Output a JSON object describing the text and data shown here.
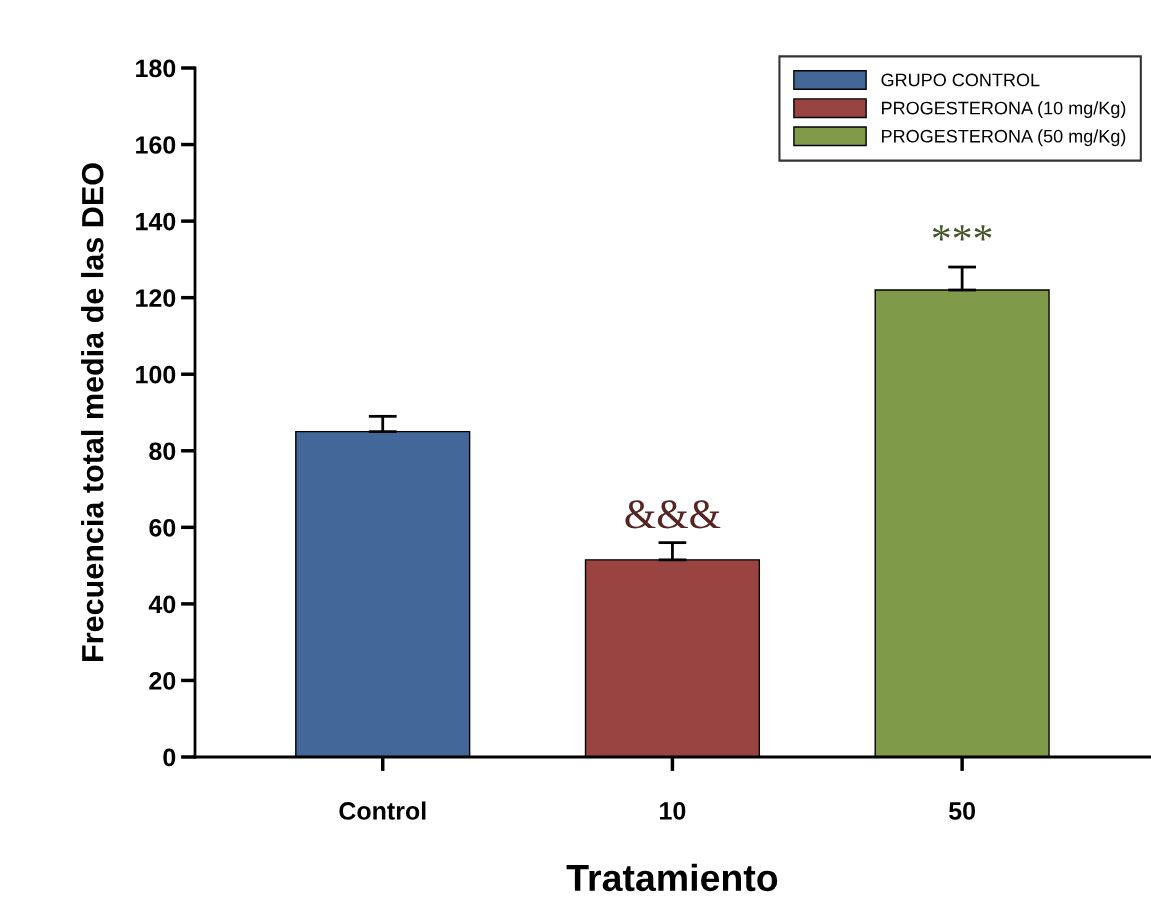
{
  "chart_data": {
    "type": "bar",
    "xlabel": "Tratamiento",
    "ylabel": "Frecuencia total media de las DEO",
    "categories": [
      "Control",
      "10",
      "50"
    ],
    "series": [
      {
        "name": "GRUPO CONTROL",
        "color": "#44679a",
        "values": [
          85,
          null,
          null
        ],
        "errors": [
          4,
          null,
          null
        ]
      },
      {
        "name": "PROGESTERONA (10 mg/Kg)",
        "color": "#9a4441",
        "values": [
          null,
          51.5,
          null
        ],
        "errors": [
          null,
          4.5,
          null
        ]
      },
      {
        "name": "PROGESTERONA (50 mg/Kg)",
        "color": "#7f9b4a",
        "values": [
          null,
          null,
          122
        ],
        "errors": [
          null,
          null,
          6
        ]
      }
    ],
    "annotations": [
      {
        "text": "&&&",
        "x": "10",
        "y": 56
      },
      {
        "text": "***",
        "x": "50",
        "y": 128
      }
    ],
    "ylim": [
      0,
      180
    ],
    "yticks": [
      0,
      20,
      40,
      60,
      80,
      100,
      120,
      140,
      160,
      180
    ],
    "grid": false,
    "legend": "top right"
  }
}
